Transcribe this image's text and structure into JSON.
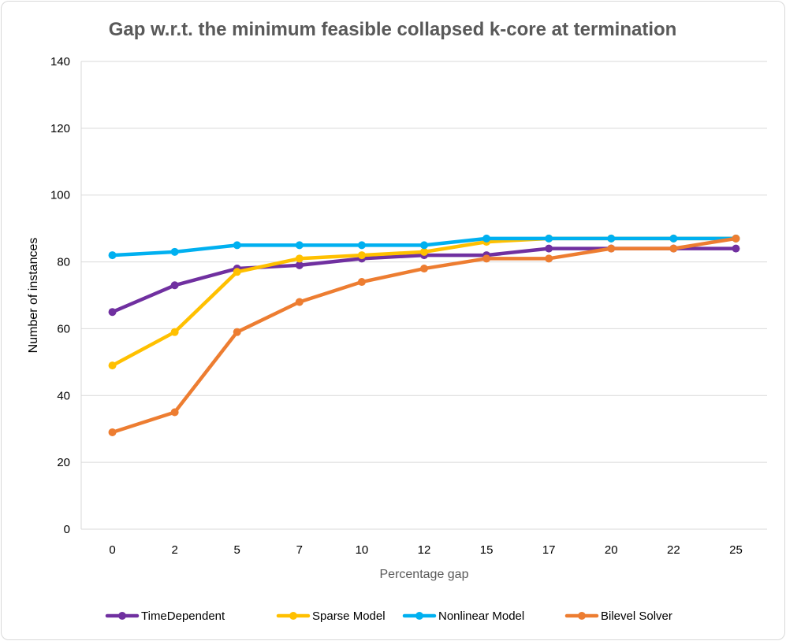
{
  "chart_data": {
    "type": "line",
    "title": "Gap w.r.t. the minimum feasible collapsed k-core at termination",
    "xlabel": "Percentage gap",
    "ylabel": "Number of instances",
    "categories": [
      "0",
      "2",
      "5",
      "7",
      "10",
      "12",
      "15",
      "17",
      "20",
      "22",
      "25"
    ],
    "ylim": [
      0,
      140
    ],
    "yticks": [
      0,
      20,
      40,
      60,
      80,
      100,
      120,
      140
    ],
    "grid": true,
    "legend": "bottom",
    "series": [
      {
        "name": "TimeDependent",
        "color": "#7030A0",
        "values": [
          65,
          73,
          78,
          79,
          81,
          82,
          82,
          84,
          84,
          84,
          84
        ]
      },
      {
        "name": "Sparse Model",
        "color": "#FFC000",
        "values": [
          49,
          59,
          77,
          81,
          82,
          83,
          86,
          87,
          87,
          87,
          87
        ]
      },
      {
        "name": "Nonlinear Model",
        "color": "#00B0F0",
        "values": [
          82,
          83,
          85,
          85,
          85,
          85,
          87,
          87,
          87,
          87,
          87
        ]
      },
      {
        "name": "Bilevel Solver",
        "color": "#ED7D31",
        "values": [
          29,
          35,
          59,
          68,
          74,
          78,
          81,
          81,
          84,
          84,
          87
        ]
      }
    ]
  }
}
